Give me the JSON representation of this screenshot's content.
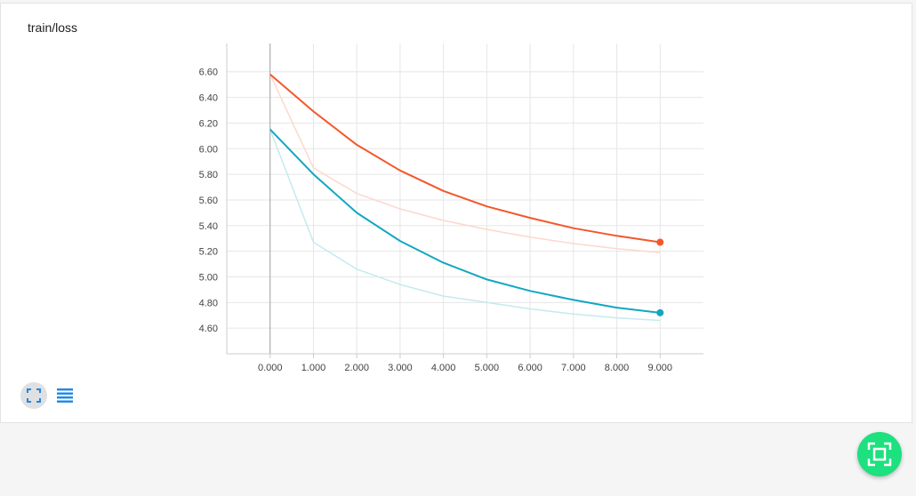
{
  "card": {
    "title": "train/loss"
  },
  "colors": {
    "orange": "#f4572a",
    "orange_light": "#fdd8cc",
    "teal": "#12a7c1",
    "teal_light": "#c4eaf0",
    "fab": "#1de07f",
    "icon_blue": "#1e88e5"
  },
  "icons": {
    "expand": "fit-to-screen-icon",
    "list": "list-icon",
    "fab": "fullscreen-icon"
  },
  "chart_data": {
    "type": "line",
    "xlim": [
      -1.0,
      10.0
    ],
    "ylim": [
      4.4,
      6.82
    ],
    "x_ticks": [
      0,
      1,
      2,
      3,
      4,
      5,
      6,
      7,
      8,
      9
    ],
    "x_tick_labels": [
      "0.000",
      "1.000",
      "2.000",
      "3.000",
      "4.000",
      "5.000",
      "6.000",
      "7.000",
      "8.000",
      "9.000"
    ],
    "y_ticks": [
      4.6,
      4.8,
      5.0,
      5.2,
      5.4,
      5.6,
      5.8,
      6.0,
      6.2,
      6.4,
      6.6
    ],
    "y_tick_labels": [
      "4.60",
      "4.80",
      "5.00",
      "5.20",
      "5.40",
      "5.60",
      "5.80",
      "6.00",
      "6.20",
      "6.40",
      "6.60"
    ],
    "grid": true,
    "series": [
      {
        "color_key": "orange_light",
        "x": [
          0,
          1,
          2,
          3,
          4,
          5,
          6,
          7,
          8,
          9
        ],
        "values": [
          6.58,
          5.85,
          5.65,
          5.53,
          5.44,
          5.37,
          5.31,
          5.26,
          5.22,
          5.19
        ]
      },
      {
        "color_key": "teal_light",
        "x": [
          0,
          1,
          2,
          3,
          4,
          5,
          6,
          7,
          8,
          9
        ],
        "values": [
          6.15,
          5.27,
          5.06,
          4.94,
          4.85,
          4.8,
          4.75,
          4.71,
          4.68,
          4.66
        ]
      },
      {
        "color_key": "orange",
        "x": [
          0,
          1,
          2,
          3,
          4,
          5,
          6,
          7,
          8,
          9
        ],
        "values": [
          6.58,
          6.29,
          6.03,
          5.83,
          5.67,
          5.55,
          5.46,
          5.38,
          5.32,
          5.27
        ]
      },
      {
        "color_key": "teal",
        "x": [
          0,
          1,
          2,
          3,
          4,
          5,
          6,
          7,
          8,
          9
        ],
        "values": [
          6.15,
          5.8,
          5.5,
          5.28,
          5.11,
          4.98,
          4.89,
          4.82,
          4.76,
          4.72
        ]
      }
    ]
  }
}
